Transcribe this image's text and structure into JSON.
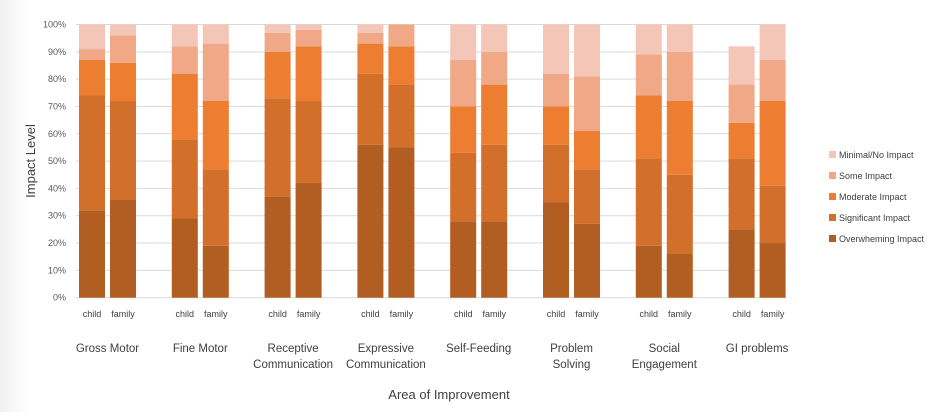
{
  "chart_data": {
    "type": "bar",
    "stacked": true,
    "title": "",
    "xlabel": "Area of Improvement",
    "ylabel": "Impact Level",
    "ylim": [
      0,
      100
    ],
    "y_ticks": [
      "0%",
      "10%",
      "20%",
      "30%",
      "40%",
      "50%",
      "60%",
      "70%",
      "80%",
      "90%",
      "100%"
    ],
    "grid": true,
    "legend_position": "right",
    "categories": [
      {
        "label_lines": [
          "Gross Motor"
        ]
      },
      {
        "label_lines": [
          "Fine Motor"
        ]
      },
      {
        "label_lines": [
          "Receptive",
          "Communication"
        ]
      },
      {
        "label_lines": [
          "Expressive",
          "Communication"
        ]
      },
      {
        "label_lines": [
          "Self-Feeding"
        ]
      },
      {
        "label_lines": [
          "Problem",
          "Solving"
        ]
      },
      {
        "label_lines": [
          "Social",
          "Engagement"
        ]
      },
      {
        "label_lines": [
          "GI problems"
        ]
      }
    ],
    "subcategories": [
      "child",
      "family"
    ],
    "series": [
      {
        "name": "Overwheming Impact",
        "color": "#B25D22",
        "values": [
          [
            32,
            36
          ],
          [
            29,
            19
          ],
          [
            37,
            42
          ],
          [
            56,
            55
          ],
          [
            28,
            28
          ],
          [
            35,
            27
          ],
          [
            19,
            16
          ],
          [
            25,
            20
          ]
        ]
      },
      {
        "name": "Significant Impact",
        "color": "#D2702B",
        "values": [
          [
            42,
            36
          ],
          [
            29,
            28
          ],
          [
            36,
            30
          ],
          [
            26,
            23
          ],
          [
            25,
            28
          ],
          [
            21,
            20
          ],
          [
            32,
            29
          ],
          [
            26,
            21
          ]
        ]
      },
      {
        "name": "Moderate Impact",
        "color": "#ED7D31",
        "values": [
          [
            13,
            14
          ],
          [
            24,
            25
          ],
          [
            17,
            20
          ],
          [
            11,
            14
          ],
          [
            17,
            22
          ],
          [
            14,
            14
          ],
          [
            23,
            27
          ],
          [
            13,
            31
          ]
        ]
      },
      {
        "name": "Some Impact",
        "color": "#F0A887",
        "values": [
          [
            4,
            10
          ],
          [
            10,
            21
          ],
          [
            7,
            6
          ],
          [
            4,
            8
          ],
          [
            17,
            12
          ],
          [
            12,
            20
          ],
          [
            15,
            18
          ],
          [
            14,
            15
          ]
        ]
      },
      {
        "name": "Minimal/No Impact",
        "color": "#F4C6B7",
        "values": [
          [
            9,
            4
          ],
          [
            8,
            7
          ],
          [
            3,
            2
          ],
          [
            3,
            0
          ],
          [
            13,
            10
          ],
          [
            18,
            19
          ],
          [
            11,
            10
          ],
          [
            14,
            13
          ]
        ]
      }
    ],
    "legend_order": [
      "Minimal/No Impact",
      "Some Impact",
      "Moderate Impact",
      "Significant Impact",
      "Overwheming Impact"
    ]
  }
}
